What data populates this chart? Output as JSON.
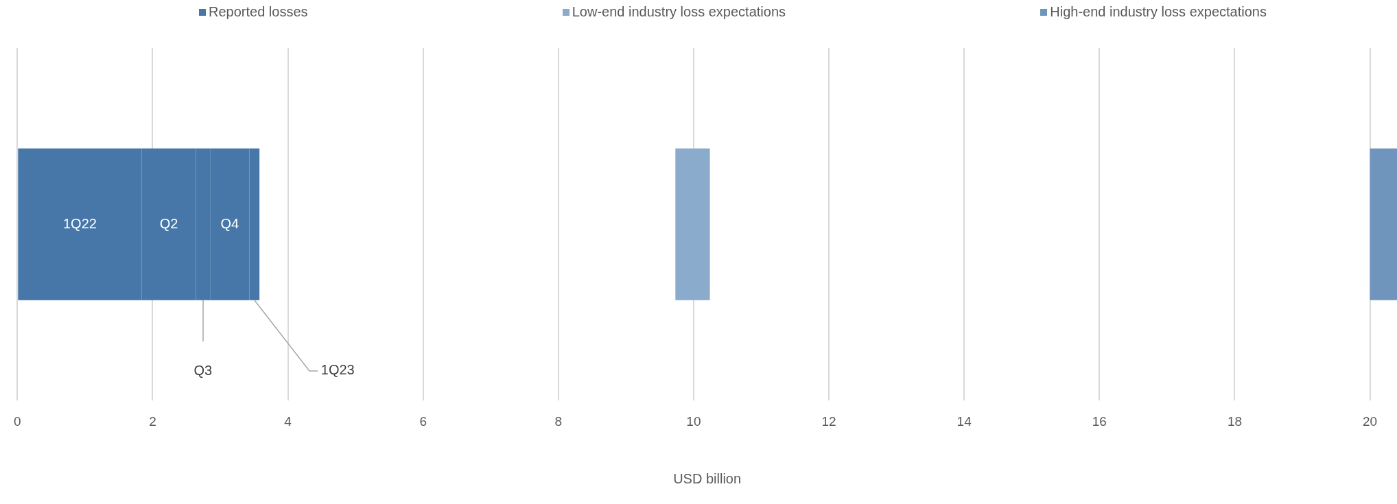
{
  "chart_data": {
    "type": "bar",
    "orientation": "horizontal",
    "xlabel": "USD billion",
    "categories": [
      null
    ],
    "series": [
      {
        "name": "Reported losses",
        "color": "#4677a8",
        "values": [
          1.84
        ],
        "base": [
          0
        ]
      },
      {
        "color": "#4677a8",
        "values": [
          0.8
        ],
        "base": [
          1.84
        ]
      },
      {
        "color": "#4677a8",
        "values": [
          0.21
        ],
        "base": [
          2.64
        ]
      },
      {
        "color": "#4677a8",
        "values": [
          0.58
        ],
        "base": [
          2.85
        ]
      },
      {
        "color": "#4677a8",
        "values": [
          0.15
        ],
        "base": [
          3.43
        ]
      },
      {
        "name": "Low-end industry loss expectations",
        "color": "#8aabcc",
        "values": [
          0.51
        ],
        "base": [
          9.73
        ]
      },
      {
        "name": "High-end industry loss expectations",
        "color": "#6f95bd",
        "values": [
          0.4
        ],
        "base": [
          20
        ]
      }
    ],
    "annotations": [
      "1Q22",
      "Q2",
      "Q3",
      "Q4",
      "1Q23"
    ],
    "xlim": [
      0,
      20.4
    ],
    "xticks": [
      0,
      2,
      4,
      6,
      8,
      10,
      12,
      14,
      16,
      18,
      20
    ],
    "grid": "x",
    "legend": "top",
    "tick_labels": "x"
  }
}
